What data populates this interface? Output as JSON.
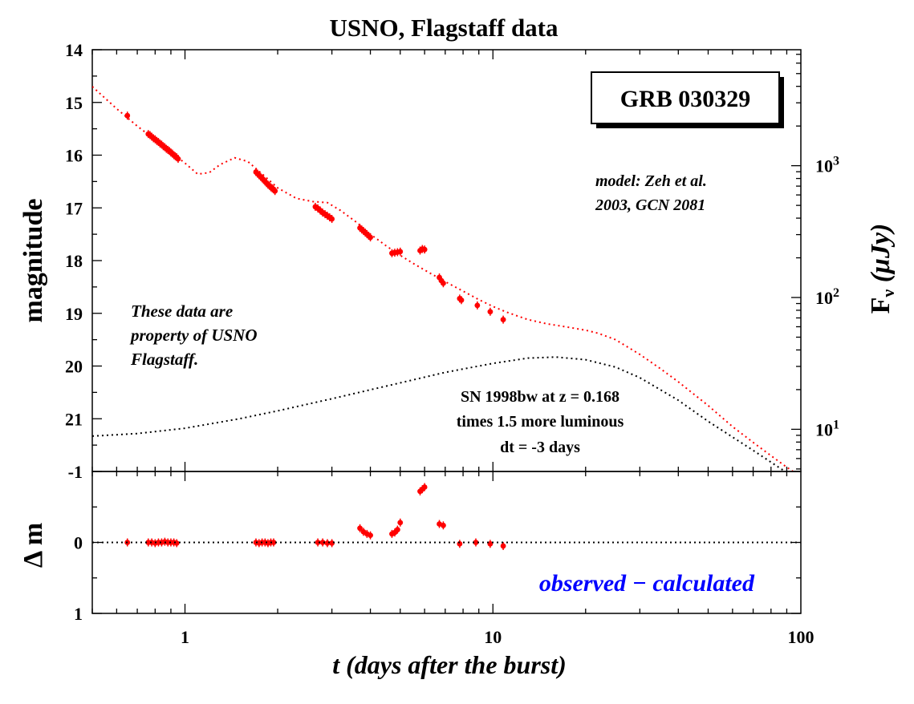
{
  "chart_data": [
    {
      "type": "scatter",
      "title": "USNO, Flagstaff data",
      "xlabel": "t (days after the burst)",
      "ylabel": "magnitude",
      "y2label": "Fν (μJy)",
      "x_scale": "log",
      "xlim": [
        0.5,
        100
      ],
      "ylim": [
        22,
        14
      ],
      "y_inverted": true,
      "x_ticks": [
        "1",
        "10",
        "100"
      ],
      "y_ticks": [
        "14",
        "15",
        "16",
        "17",
        "18",
        "19",
        "20",
        "21",
        "-1"
      ],
      "y2_scale": "log",
      "y2_ticks": [
        {
          "base": "10",
          "exp": "1",
          "value": 10
        },
        {
          "base": "10",
          "exp": "2",
          "value": 100
        },
        {
          "base": "10",
          "exp": "3",
          "value": 1000
        }
      ],
      "box_label": "GRB 030329",
      "annotations": {
        "model": [
          "model: Zeh et al.",
          "2003, GCN 2081"
        ],
        "property": [
          "These data are",
          "property of USNO",
          "Flagstaff."
        ],
        "sn": [
          "SN 1998bw at  z = 0.168",
          "times 1.5 more luminous",
          "dt = -3 days"
        ]
      },
      "series": [
        {
          "name": "",
          "style": "points-with-errorbars",
          "color": "#ff0000",
          "x": [
            0.65,
            0.76,
            0.77,
            0.78,
            0.79,
            0.8,
            0.81,
            0.82,
            0.83,
            0.84,
            0.85,
            0.86,
            0.87,
            0.88,
            0.89,
            0.9,
            0.91,
            0.92,
            0.93,
            0.94,
            0.95,
            1.7,
            1.72,
            1.74,
            1.76,
            1.78,
            1.8,
            1.82,
            1.84,
            1.86,
            1.88,
            1.9,
            1.92,
            1.94,
            1.96,
            2.65,
            2.7,
            2.75,
            2.8,
            2.85,
            2.9,
            2.95,
            3.0,
            3.7,
            3.75,
            3.8,
            3.85,
            3.9,
            3.95,
            4.0,
            4.7,
            4.8,
            4.9,
            5.0,
            5.8,
            5.9,
            6.0,
            6.7,
            6.8,
            6.9,
            7.8,
            7.9,
            8.9,
            9.8,
            10.8
          ],
          "y": [
            15.25,
            15.6,
            15.62,
            15.65,
            15.68,
            15.7,
            15.73,
            15.75,
            15.78,
            15.8,
            15.83,
            15.85,
            15.88,
            15.9,
            15.92,
            15.95,
            15.97,
            16.0,
            16.02,
            16.04,
            16.07,
            16.32,
            16.35,
            16.38,
            16.41,
            16.44,
            16.47,
            16.5,
            16.53,
            16.56,
            16.58,
            16.61,
            16.63,
            16.65,
            16.68,
            16.98,
            17.01,
            17.05,
            17.09,
            17.12,
            17.15,
            17.18,
            17.21,
            17.38,
            17.41,
            17.44,
            17.47,
            17.5,
            17.53,
            17.56,
            17.86,
            17.85,
            17.84,
            17.83,
            17.81,
            17.78,
            17.79,
            18.32,
            18.38,
            18.43,
            18.72,
            18.75,
            18.85,
            18.97,
            19.12
          ]
        },
        {
          "name": "",
          "style": "dotted-line",
          "color": "#ff0000",
          "x": [
            0.5,
            0.6,
            0.7,
            0.8,
            0.9,
            1.0,
            1.1,
            1.2,
            1.3,
            1.45,
            1.6,
            1.8,
            2.0,
            2.3,
            2.6,
            2.9,
            3.2,
            3.6,
            4.0,
            4.5,
            5.0,
            5.5,
            6.0,
            7.0,
            8.0,
            9.0,
            10.0,
            11.0,
            12.0,
            13.0,
            15.0,
            17.0,
            20.0,
            22.0,
            25.0,
            30.0,
            35.0,
            40.0,
            50.0,
            60.0,
            70.0,
            80.0,
            90.0,
            100.0
          ],
          "y": [
            14.7,
            15.12,
            15.45,
            15.71,
            15.94,
            16.15,
            16.36,
            16.33,
            16.18,
            16.05,
            16.12,
            16.38,
            16.62,
            16.82,
            16.88,
            16.9,
            17.05,
            17.27,
            17.5,
            17.72,
            17.9,
            18.05,
            18.18,
            18.4,
            18.58,
            18.74,
            18.87,
            18.97,
            19.05,
            19.12,
            19.2,
            19.25,
            19.32,
            19.38,
            19.5,
            19.78,
            20.05,
            20.3,
            20.75,
            21.15,
            21.45,
            21.7,
            21.92,
            22.1
          ]
        },
        {
          "name": "",
          "style": "dotted-line",
          "color": "#000000",
          "x": [
            0.5,
            0.7,
            1.0,
            1.5,
            2.0,
            3.0,
            4.0,
            5.0,
            7.0,
            10.0,
            13.0,
            16.0,
            20.0,
            25.0,
            30.0,
            40.0,
            50.0,
            70.0,
            100.0
          ],
          "y": [
            21.33,
            21.28,
            21.18,
            21.0,
            20.85,
            20.62,
            20.45,
            20.32,
            20.12,
            19.95,
            19.85,
            19.83,
            19.88,
            20.02,
            20.22,
            20.65,
            21.05,
            21.6,
            22.2
          ]
        }
      ]
    },
    {
      "type": "scatter",
      "xlabel": "t (days after the burst)",
      "ylabel": "Δ m",
      "x_scale": "log",
      "xlim": [
        0.5,
        100
      ],
      "ylim": [
        1,
        -1
      ],
      "y_inverted": true,
      "y_ticks": [
        "-1",
        "0",
        "1"
      ],
      "x_ticks": [
        "1",
        "10",
        "100"
      ],
      "annotation": "observed − calculated",
      "annotation_color": "#0000ff",
      "series": [
        {
          "name": "",
          "style": "points-with-errorbars",
          "color": "#ff0000",
          "x": [
            0.65,
            0.76,
            0.78,
            0.8,
            0.82,
            0.84,
            0.86,
            0.88,
            0.9,
            0.92,
            0.94,
            1.7,
            1.74,
            1.78,
            1.82,
            1.86,
            1.9,
            1.94,
            2.7,
            2.8,
            2.9,
            3.0,
            3.7,
            3.8,
            3.9,
            4.0,
            4.7,
            4.8,
            4.9,
            5.0,
            5.8,
            5.9,
            6.0,
            6.7,
            6.9,
            7.8,
            8.8,
            9.8,
            10.8
          ],
          "y": [
            0.0,
            0.0,
            0.0,
            0.01,
            0.0,
            0.0,
            -0.01,
            0.0,
            0.0,
            0.0,
            0.01,
            0.0,
            0.01,
            0.0,
            0.0,
            0.01,
            0.0,
            0.0,
            0.0,
            0.0,
            0.01,
            0.01,
            -0.2,
            -0.15,
            -0.12,
            -0.1,
            -0.12,
            -0.14,
            -0.18,
            -0.28,
            -0.72,
            -0.75,
            -0.78,
            -0.26,
            -0.24,
            0.02,
            0.0,
            0.02,
            0.05
          ]
        },
        {
          "name": "",
          "style": "dotted-line",
          "color": "#000000",
          "x": [
            0.5,
            100
          ],
          "y": [
            0,
            0
          ]
        }
      ]
    }
  ]
}
